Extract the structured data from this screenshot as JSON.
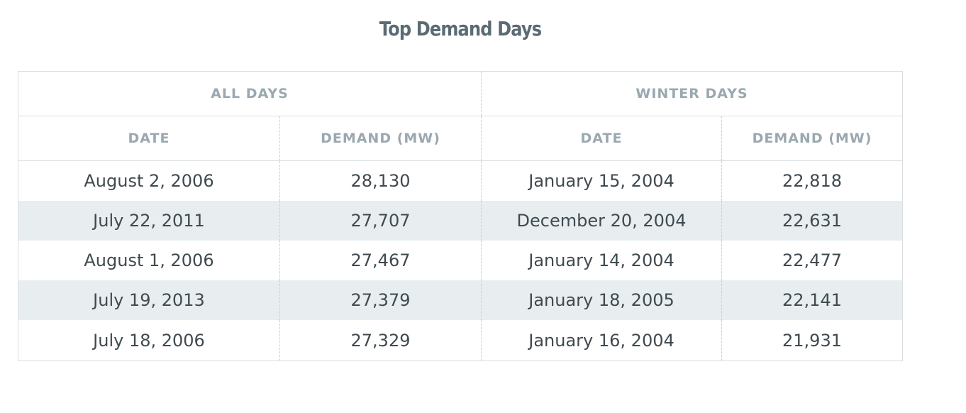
{
  "title": "Top Demand Days",
  "groups": [
    "ALL DAYS",
    "WINTER DAYS"
  ],
  "columns": [
    "DATE",
    "DEMAND (MW)",
    "DATE",
    "DEMAND (MW)"
  ],
  "rows": [
    [
      "August 2, 2006",
      "28,130",
      "January 15, 2004",
      "22,818"
    ],
    [
      "July 22, 2011",
      "27,707",
      "December 20, 2004",
      "22,631"
    ],
    [
      "August 1, 2006",
      "27,467",
      "January 14, 2004",
      "22,477"
    ],
    [
      "July 19, 2013",
      "27,379",
      "January 18, 2005",
      "22,141"
    ],
    [
      "July 18, 2006",
      "27,329",
      "January 16, 2004",
      "21,931"
    ]
  ],
  "colors": {
    "title": "#5a6b74",
    "header_text": "#9aa8b0",
    "body_text": "#3f4a50",
    "alt_row": "#e8eef0",
    "border": "#d9dee1"
  }
}
